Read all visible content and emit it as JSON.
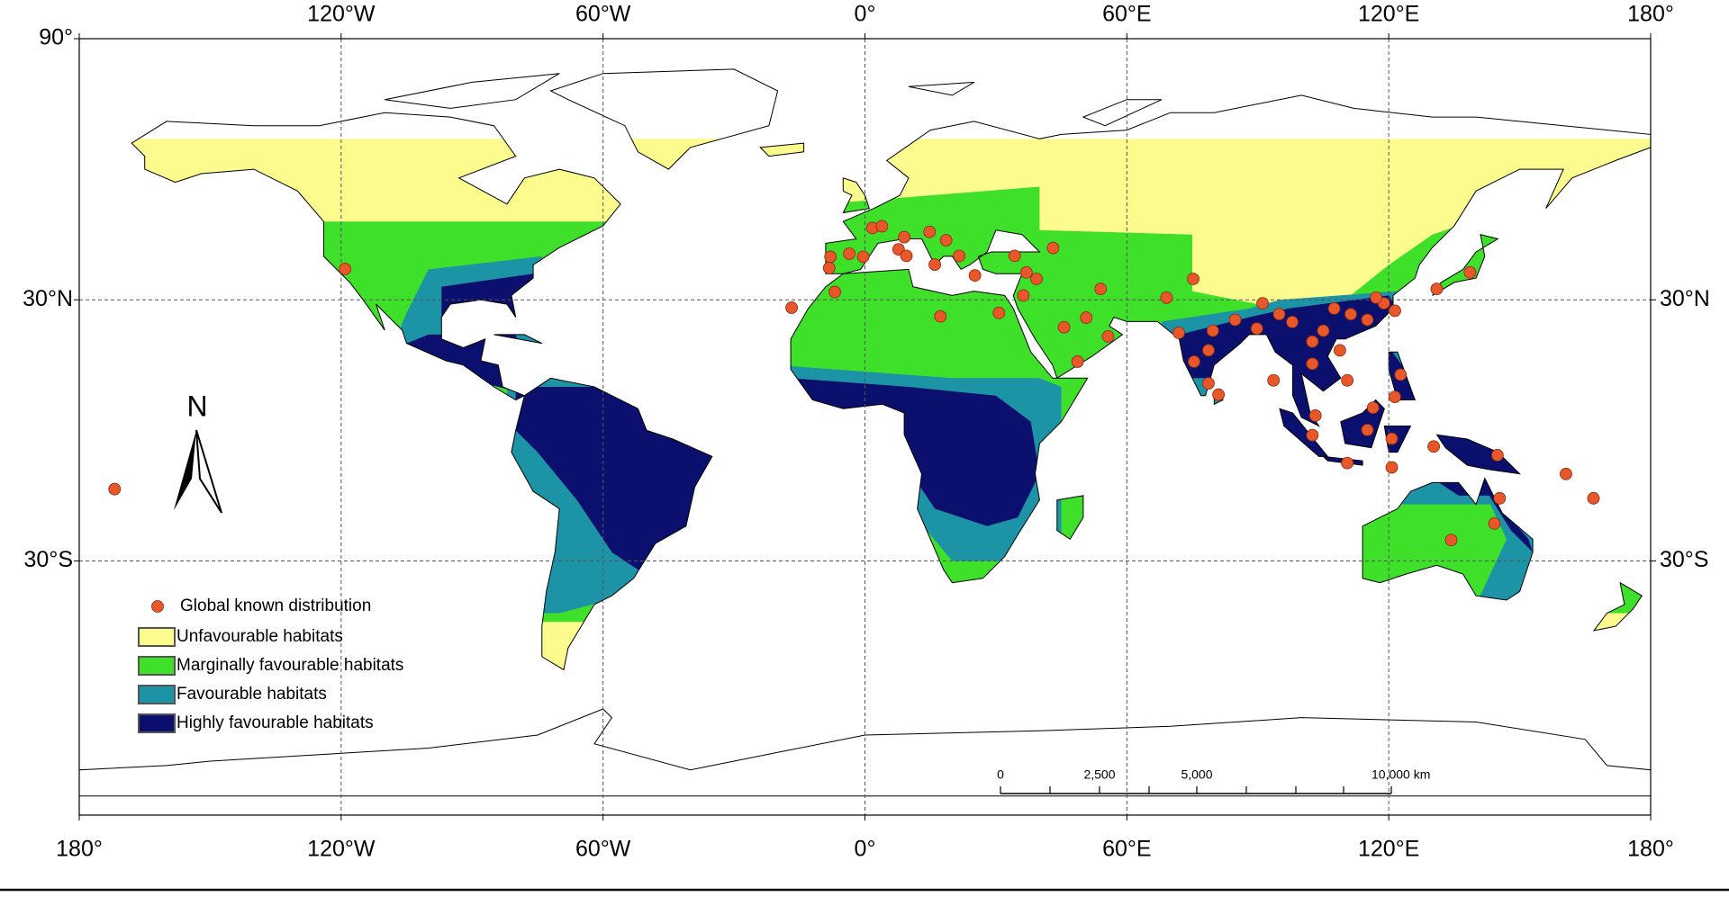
{
  "map": {
    "xlim": [
      -180,
      180
    ],
    "ylim": [
      -88.4,
      90
    ],
    "xticks": [
      {
        "value": -180,
        "label": "180°"
      },
      {
        "value": -120,
        "label": "120°W"
      },
      {
        "value": -60,
        "label": "60°W"
      },
      {
        "value": 0,
        "label": "0°"
      },
      {
        "value": 60,
        "label": "60°E"
      },
      {
        "value": 120,
        "label": "120°E"
      },
      {
        "value": 180,
        "label": "180°"
      }
    ],
    "yticks": [
      {
        "value": 90,
        "label": "90°"
      },
      {
        "value": 30,
        "label": "30°N"
      },
      {
        "value": -30,
        "label": "30°S"
      }
    ],
    "north": "N",
    "legend": [
      {
        "label": "Global known distribution",
        "color": "#e8572a"
      },
      {
        "label": "Unfavourable habitats",
        "color": "#fbfb8e"
      },
      {
        "label": "Marginally favourable habitats",
        "color": "#3fe02a"
      },
      {
        "label": "Favourable habitats",
        "color": "#1d93a6"
      },
      {
        "label": "Highly favourable habitats",
        "color": "#0b106e"
      }
    ],
    "scale_bar": [
      "0",
      "2,500",
      "5,000",
      "10,000 km"
    ],
    "distribution": [
      [
        -119.1,
        37.1
      ],
      [
        -171.9,
        -13.5
      ],
      [
        -16.8,
        28.2
      ],
      [
        -6.9,
        31.8
      ],
      [
        -8.2,
        37.3
      ],
      [
        -7.9,
        39.9
      ],
      [
        -3.6,
        40.6
      ],
      [
        -0.4,
        39.9
      ],
      [
        1.7,
        46.5
      ],
      [
        3.9,
        46.9
      ],
      [
        7.7,
        41.6
      ],
      [
        9.5,
        40.1
      ],
      [
        9.0,
        44.4
      ],
      [
        14.8,
        45.6
      ],
      [
        16,
        38.1
      ],
      [
        18.6,
        43.7
      ],
      [
        21.6,
        40.1
      ],
      [
        25.2,
        35.6
      ],
      [
        17.3,
        26.2
      ],
      [
        30.7,
        27
      ],
      [
        37,
        36.3
      ],
      [
        43.1,
        41.9
      ],
      [
        34.3,
        40.1
      ],
      [
        36.3,
        31
      ],
      [
        39.3,
        34.8
      ],
      [
        45.6,
        23.7
      ],
      [
        50.7,
        25.9
      ],
      [
        54,
        32.5
      ],
      [
        55.7,
        21.6
      ],
      [
        48.7,
        15.8
      ],
      [
        69.1,
        30.5
      ],
      [
        75.2,
        34.8
      ],
      [
        71.9,
        22.4
      ],
      [
        75.4,
        15.8
      ],
      [
        78.7,
        18.4
      ],
      [
        79.7,
        22.9
      ],
      [
        78.7,
        10.8
      ],
      [
        81,
        8.2
      ],
      [
        84.8,
        25.4
      ],
      [
        91.1,
        29.2
      ],
      [
        94.9,
        26.7
      ],
      [
        97.9,
        24.9
      ],
      [
        102.5,
        20.4
      ],
      [
        105,
        22.9
      ],
      [
        107.5,
        28
      ],
      [
        111.3,
        26.7
      ],
      [
        115.1,
        25.4
      ],
      [
        118.9,
        29.2
      ],
      [
        121.4,
        27.5
      ],
      [
        117.1,
        30.5
      ],
      [
        108.8,
        18.4
      ],
      [
        102.5,
        15.3
      ],
      [
        93.6,
        11.5
      ],
      [
        110.5,
        11.5
      ],
      [
        122.7,
        12.8
      ],
      [
        116.4,
        5.2
      ],
      [
        131,
        32.5
      ],
      [
        138.6,
        36.3
      ],
      [
        103.2,
        3.4
      ],
      [
        102.5,
        -1.1
      ],
      [
        110.5,
        -7.5
      ],
      [
        115.1,
        0.1
      ],
      [
        120.7,
        -1.9
      ],
      [
        120.7,
        -8.5
      ],
      [
        130.3,
        -3.7
      ],
      [
        144.9,
        -5.7
      ],
      [
        144.2,
        -21.4
      ],
      [
        134.3,
        -25.2
      ],
      [
        145.4,
        -15.6
      ],
      [
        160.6,
        -10
      ],
      [
        166.9,
        -15.6
      ],
      [
        89.8,
        23.4
      ],
      [
        121.4,
        7.7
      ]
    ]
  }
}
